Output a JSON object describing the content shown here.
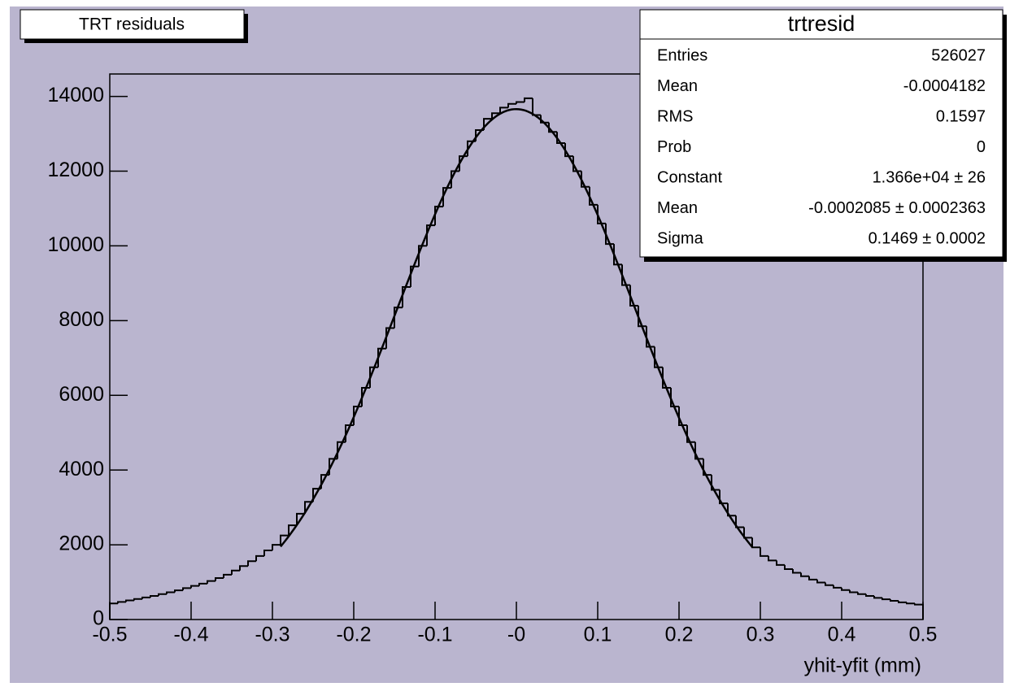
{
  "chart_data": {
    "type": "histogram",
    "title": "TRT residuals",
    "x_label": "yhit-yfit (mm)",
    "color": "#000000",
    "bins": [
      -0.5,
      -0.49,
      -0.48,
      -0.47,
      -0.46,
      -0.45,
      -0.44,
      -0.43,
      -0.42,
      -0.41,
      -0.4,
      -0.39,
      -0.38,
      -0.37,
      -0.36,
      -0.35,
      -0.34,
      -0.33,
      -0.32,
      -0.31,
      -0.3,
      -0.29,
      -0.28,
      -0.27,
      -0.26,
      -0.25,
      -0.24,
      -0.23,
      -0.22,
      -0.21,
      -0.2,
      -0.19,
      -0.18,
      -0.17,
      -0.16,
      -0.15,
      -0.14,
      -0.13,
      -0.12,
      -0.11,
      -0.1,
      -0.09,
      -0.08,
      -0.07,
      -0.06,
      -0.05,
      -0.04,
      -0.03,
      -0.02,
      -0.01,
      0,
      0.01,
      0.02,
      0.03,
      0.04,
      0.05,
      0.06,
      0.07,
      0.08,
      0.09,
      0.1,
      0.11,
      0.12,
      0.13,
      0.14,
      0.15,
      0.16,
      0.17,
      0.18,
      0.19,
      0.2,
      0.21,
      0.22,
      0.23,
      0.24,
      0.25,
      0.26,
      0.27,
      0.28,
      0.29,
      0.3,
      0.31,
      0.32,
      0.33,
      0.34,
      0.35,
      0.36,
      0.37,
      0.38,
      0.39,
      0.4,
      0.41,
      0.42,
      0.43,
      0.44,
      0.45,
      0.46,
      0.47,
      0.48,
      0.49,
      0.5
    ],
    "values": [
      430,
      470,
      510,
      550,
      590,
      630,
      680,
      730,
      780,
      840,
      900,
      960,
      1030,
      1110,
      1200,
      1310,
      1430,
      1560,
      1700,
      1850,
      2000,
      2250,
      2520,
      2830,
      3150,
      3500,
      3870,
      4300,
      4750,
      5200,
      5700,
      6200,
      6750,
      7250,
      7800,
      8350,
      8900,
      9450,
      10000,
      10550,
      11050,
      11550,
      12000,
      12400,
      12800,
      13100,
      13400,
      13550,
      13700,
      13800,
      13850,
      13950,
      13500,
      13300,
      13050,
      12750,
      12400,
      12000,
      11580,
      11100,
      10600,
      10050,
      9500,
      8950,
      8400,
      7850,
      7300,
      6750,
      6200,
      5700,
      5200,
      4750,
      4300,
      3870,
      3470,
      3110,
      2780,
      2470,
      2190,
      1930,
      1700,
      1580,
      1460,
      1350,
      1250,
      1160,
      1070,
      990,
      920,
      850,
      790,
      730,
      680,
      630,
      580,
      540,
      500,
      460,
      430,
      400
    ],
    "fit": {
      "constant": 13660,
      "mean": -0.0002085,
      "sigma": 0.1469,
      "xrange": [
        -0.29,
        0.29
      ]
    },
    "xlim": [
      -0.5,
      0.5
    ],
    "ylim": [
      0,
      14600
    ],
    "xticks": [
      -0.5,
      -0.4,
      -0.3,
      -0.2,
      -0.1,
      {
        "value": 0,
        "label": "-0"
      },
      0.1,
      0.2,
      0.3,
      0.4,
      0.5
    ],
    "yticks": [
      0,
      2000,
      4000,
      6000,
      8000,
      10000,
      12000,
      14000
    ],
    "stats": {
      "title": "trtresid",
      "rows": [
        [
          "Entries",
          "526027"
        ],
        [
          "Mean",
          "-0.0004182"
        ],
        [
          "RMS",
          "0.1597"
        ],
        [
          "Prob",
          "0"
        ],
        [
          "Constant",
          "1.366e+04 ± 26"
        ],
        [
          "Mean",
          "-0.0002085 ± 0.0002363"
        ],
        [
          "Sigma",
          "0.1469 ± 0.0002"
        ]
      ]
    }
  }
}
